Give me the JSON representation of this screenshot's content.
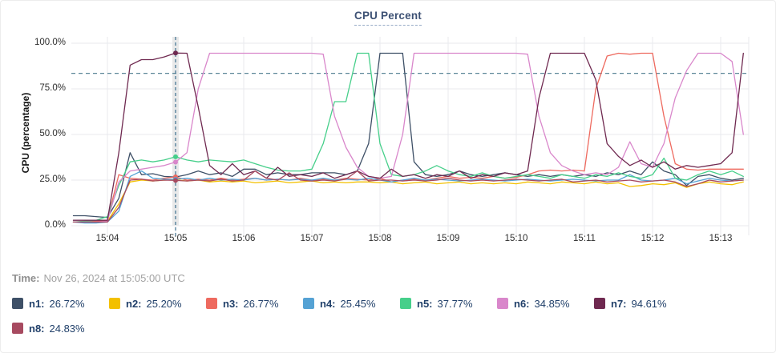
{
  "title": "CPU Percent",
  "time_row": {
    "label": "Time:",
    "value": "Nov 26, 2024 at 15:05:00 UTC"
  },
  "colors": {
    "grid": "#e8eaed",
    "threshold": "#5d8799",
    "crosshair_line": "#3d708f",
    "crosshair_band": "#e9e9e9",
    "title_text": "#3d5174",
    "legend_text": "#21406a"
  },
  "chart_data": {
    "type": "line",
    "title": "CPU Percent",
    "xlabel": "",
    "ylabel": "CPU (percentage)",
    "ylim": [
      0,
      100
    ],
    "yticks": [
      0,
      25,
      50,
      75,
      100
    ],
    "ytick_labels": [
      "0.0%",
      "25.0%",
      "50.0%",
      "75.0%",
      "100.0%"
    ],
    "xtick_labels": [
      "15:04",
      "15:05",
      "15:06",
      "15:07",
      "15:08",
      "15:09",
      "15:10",
      "15:11",
      "15:12",
      "15:13"
    ],
    "grid": true,
    "legend_position": "bottom",
    "threshold_value": 83.5,
    "crosshair_time_label": "15:05",
    "crosshair_index": 9,
    "x_start": "15:03:30",
    "x_step_seconds": 10,
    "series": [
      {
        "name": "n1",
        "legend_label": "n1:",
        "legend_value": "26.72%",
        "marker_value": 26.72,
        "color": "#3e5067",
        "values": [
          5.5,
          5.5,
          5,
          4.5,
          15,
          40,
          28,
          28.5,
          27,
          26.72,
          28,
          30,
          28,
          29,
          27,
          31,
          31,
          28,
          29,
          28,
          28,
          29,
          29,
          29,
          28,
          30,
          45,
          94.5,
          94.5,
          94.5,
          35,
          28,
          27,
          28,
          30,
          28,
          27,
          28,
          29,
          28,
          27,
          28,
          27,
          28,
          27,
          28,
          27,
          29,
          28,
          30,
          28,
          35,
          30,
          28,
          22,
          27,
          28,
          26,
          25,
          26
        ]
      },
      {
        "name": "n2",
        "legend_label": "n2:",
        "legend_value": "25.20%",
        "marker_value": 25.2,
        "color": "#f3c000",
        "values": [
          2,
          2,
          2,
          2.5,
          12,
          24,
          25,
          24.5,
          25,
          25.2,
          24.5,
          25,
          24,
          24.5,
          24,
          24.5,
          23.5,
          24,
          24.5,
          23.5,
          24,
          24.5,
          23.5,
          24,
          23.5,
          24,
          24,
          23.5,
          24,
          23,
          23.5,
          24,
          23,
          23.5,
          24,
          23,
          23.5,
          23,
          23.5,
          23,
          24,
          23.5,
          23,
          24,
          23.5,
          23,
          24,
          23,
          23.5,
          21.5,
          22,
          23,
          22.5,
          23.5,
          21,
          23,
          24,
          23,
          22.5,
          24
        ]
      },
      {
        "name": "n3",
        "legend_label": "n3:",
        "legend_value": "26.77%",
        "marker_value": 26.77,
        "color": "#ee6a5f",
        "values": [
          2,
          2,
          2.5,
          3,
          28,
          26,
          25.5,
          25,
          26,
          26.77,
          25,
          25.5,
          25,
          26,
          25,
          25.5,
          26,
          25,
          25.5,
          25,
          26,
          25,
          25.5,
          25,
          26,
          25.5,
          25,
          26,
          24,
          25,
          25.5,
          25,
          26,
          27,
          26,
          26.5,
          26,
          27,
          26,
          26.5,
          28,
          30,
          30.5,
          30,
          30.5,
          30,
          75,
          93,
          94.5,
          94,
          94.5,
          94.5,
          60,
          34,
          31,
          30.5,
          31,
          31,
          31,
          31
        ]
      },
      {
        "name": "n4",
        "legend_label": "n4:",
        "legend_value": "25.45%",
        "marker_value": 25.45,
        "color": "#55a2d4",
        "values": [
          2,
          1.5,
          1.5,
          2,
          8,
          27,
          30,
          26,
          25.5,
          25.45,
          26,
          25,
          26,
          25,
          25.5,
          25,
          26,
          25,
          25.5,
          25,
          25.5,
          25,
          26,
          25,
          25.5,
          25,
          26,
          25,
          24,
          25,
          26,
          25,
          25.5,
          25,
          24.5,
          25,
          25.5,
          25,
          24.5,
          25,
          25.5,
          25,
          24.5,
          25,
          25.5,
          25,
          24.5,
          25,
          25,
          28,
          25,
          24.5,
          25,
          26,
          23,
          24.5,
          26,
          25,
          24.5,
          25
        ]
      },
      {
        "name": "n5",
        "legend_label": "n5:",
        "legend_value": "37.77%",
        "marker_value": 37.77,
        "color": "#46cf8a",
        "values": [
          2,
          2.5,
          3,
          5,
          22,
          35,
          36,
          35,
          36,
          37.77,
          36,
          35,
          36,
          35.5,
          35,
          36,
          34,
          32,
          30.5,
          30,
          30,
          31,
          45,
          68,
          68,
          94.5,
          94.5,
          45,
          28,
          27,
          28,
          30,
          33,
          30,
          28,
          27,
          29,
          27,
          26,
          27,
          28,
          27,
          26,
          28,
          27,
          26,
          28,
          27,
          29,
          27,
          26,
          28,
          37,
          26,
          25,
          28,
          30,
          28,
          30,
          27
        ]
      },
      {
        "name": "n6",
        "legend_label": "n6:",
        "legend_value": "34.85%",
        "marker_value": 34.85,
        "color": "#d987cb",
        "values": [
          2,
          2,
          2,
          2.5,
          24,
          30,
          31,
          32,
          33,
          34.85,
          40,
          75,
          94.5,
          94.5,
          94.5,
          94.5,
          94.5,
          94.5,
          94.5,
          94.5,
          94.5,
          94.5,
          94,
          60,
          43,
          32,
          27,
          26,
          27,
          50,
          94.5,
          94.5,
          94.5,
          94.5,
          94.5,
          94.5,
          94.5,
          94.5,
          94.5,
          94.5,
          94,
          60,
          40,
          33,
          30,
          28,
          29,
          28,
          32,
          46,
          34,
          32,
          45,
          70,
          85,
          94.5,
          94.5,
          94.5,
          90,
          50
        ]
      },
      {
        "name": "n7",
        "legend_label": "n7:",
        "legend_value": "94.61%",
        "marker_value": 94.61,
        "color": "#6f2950",
        "values": [
          3,
          3,
          3,
          3,
          40,
          88,
          91,
          91,
          92.5,
          94.61,
          94.5,
          65,
          33,
          28,
          34,
          28,
          30,
          26,
          32,
          27,
          28,
          27,
          29,
          26,
          28,
          30,
          27,
          26,
          31,
          27,
          28,
          26,
          28,
          27,
          30,
          26,
          28,
          27,
          29,
          28,
          30,
          70,
          94.5,
          94.5,
          94.5,
          94.5,
          80,
          45,
          38,
          33,
          36,
          32,
          35,
          31,
          33,
          32,
          33,
          34,
          40,
          94.5
        ]
      },
      {
        "name": "n8",
        "legend_label": "n8:",
        "legend_value": "24.83%",
        "marker_value": 24.83,
        "color": "#a74a60",
        "values": [
          2,
          2,
          2,
          2,
          10,
          25,
          25.5,
          24.5,
          25,
          24.83,
          24.5,
          25,
          24.5,
          25.5,
          24.5,
          25,
          30,
          26,
          25,
          29,
          25,
          24.5,
          25,
          24.5,
          25.5,
          30,
          24.5,
          25,
          25,
          24.5,
          25,
          24.5,
          25,
          26,
          25,
          24.5,
          25,
          24.5,
          25,
          25.5,
          25,
          24.5,
          25,
          25.5,
          24,
          24.5,
          25,
          24,
          24.5,
          25,
          24,
          24.5,
          25,
          24,
          21.5,
          23,
          25,
          24,
          24.5,
          25
        ]
      }
    ]
  }
}
